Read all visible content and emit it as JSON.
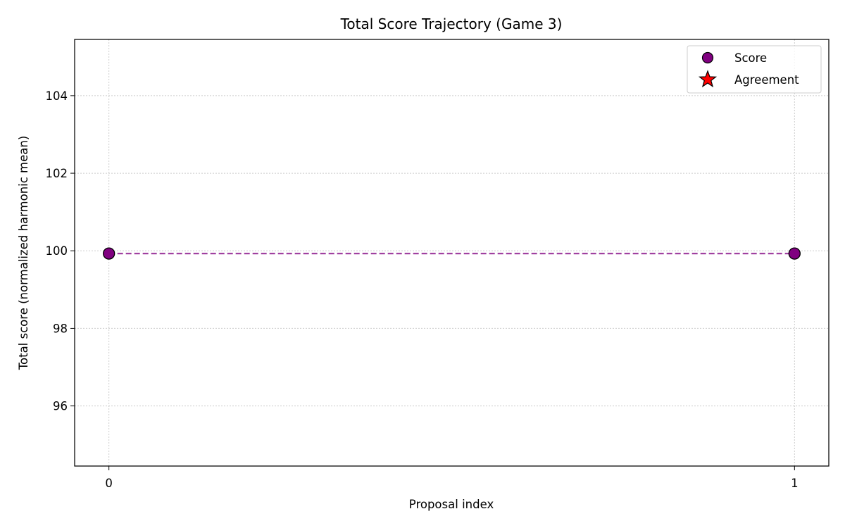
{
  "chart_data": {
    "type": "line",
    "title": "Total Score Trajectory (Game 3)",
    "xlabel": "Proposal index",
    "ylabel": "Total score (normalized harmonic mean)",
    "xlim": [
      -0.05,
      1.05
    ],
    "ylim": [
      94.45,
      105.45
    ],
    "x_ticks": [
      0,
      1
    ],
    "y_ticks": [
      96,
      98,
      100,
      102,
      104
    ],
    "grid": true,
    "legend_position": "top-right",
    "series": [
      {
        "name": "Score",
        "marker": "circle",
        "line_style": "dashed",
        "color": "#800080",
        "x": [
          0,
          1
        ],
        "y": [
          99.93,
          99.93
        ]
      },
      {
        "name": "Agreement",
        "marker": "star",
        "color": "#ff0000",
        "x": [],
        "y": []
      }
    ]
  }
}
